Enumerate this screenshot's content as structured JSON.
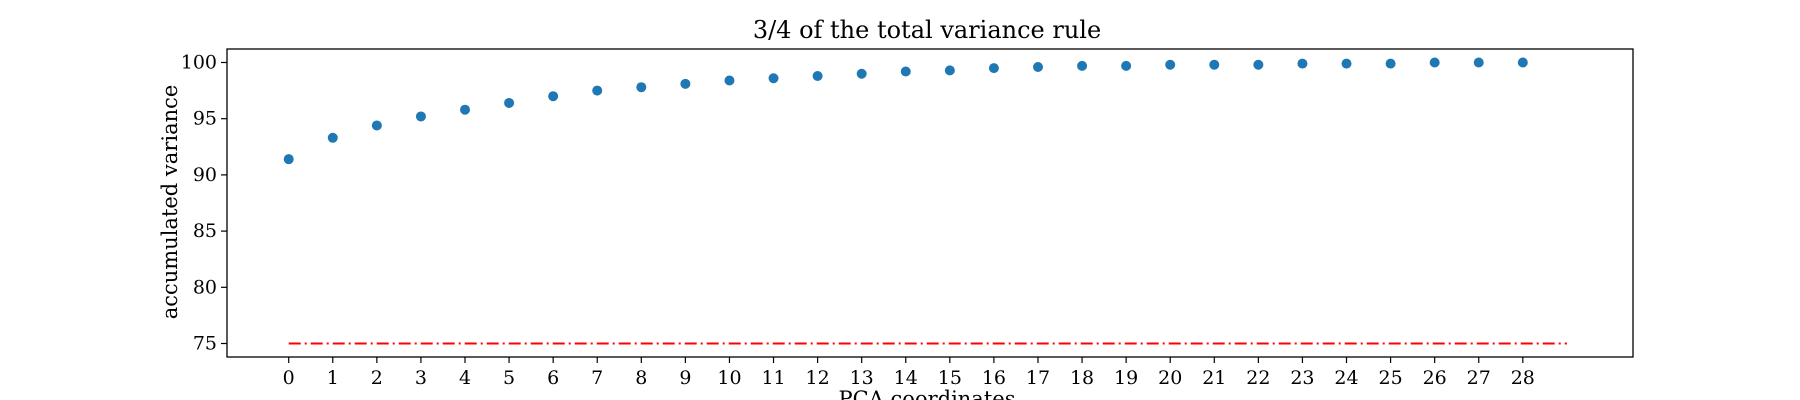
{
  "chart_data": {
    "type": "scatter",
    "title": "3/4 of the total variance rule",
    "xlabel": "PCA coordinates",
    "ylabel": "accumulated variance",
    "x": [
      0,
      1,
      2,
      3,
      4,
      5,
      6,
      7,
      8,
      9,
      10,
      11,
      12,
      13,
      14,
      15,
      16,
      17,
      18,
      19,
      20,
      21,
      22,
      23,
      24,
      25,
      26,
      27,
      28
    ],
    "y": [
      91.4,
      93.3,
      94.4,
      95.2,
      95.8,
      96.4,
      97.0,
      97.5,
      97.8,
      98.1,
      98.4,
      98.6,
      98.8,
      99.0,
      99.2,
      99.3,
      99.5,
      99.6,
      99.7,
      99.7,
      99.8,
      99.8,
      99.8,
      99.9,
      99.9,
      99.9,
      100.0,
      100.0,
      100.0
    ],
    "xticks": [
      "0",
      "1",
      "2",
      "3",
      "4",
      "5",
      "6",
      "7",
      "8",
      "9",
      "10",
      "11",
      "12",
      "13",
      "14",
      "15",
      "16",
      "17",
      "18",
      "19",
      "20",
      "21",
      "22",
      "23",
      "24",
      "25",
      "26",
      "27",
      "28"
    ],
    "yticks": [
      "75",
      "80",
      "85",
      "90",
      "95",
      "100"
    ],
    "xlim": [
      -1.4,
      30.5
    ],
    "ylim": [
      73.8,
      101.2
    ],
    "threshold": {
      "value": 75,
      "x_range": [
        0,
        29
      ],
      "color": "#ff0000",
      "style": "dash-dot"
    },
    "point_color": "#1f77b4",
    "grid": false,
    "legend": "none"
  }
}
